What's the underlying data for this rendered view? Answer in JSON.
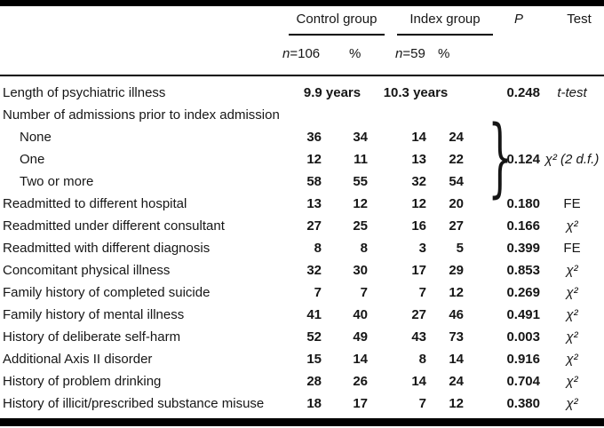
{
  "header": {
    "control_group": "Control group",
    "index_group": "Index group",
    "p_label": "P",
    "test_label": "Test",
    "control_n_italic": "n",
    "control_n_value": "=106",
    "control_pct_label": "%",
    "index_n_italic": "n",
    "index_n_value": "=59",
    "index_pct_label": "%"
  },
  "table": {
    "brace_glyph": "}",
    "rows": [
      {
        "label": "Length of psychiatric illness",
        "indent": false,
        "ctrl_span": "9.9 years",
        "idx_span": "10.3 years",
        "p": "0.248",
        "test": "t-test",
        "test_italic": true
      },
      {
        "label": "Number of admissions prior to index admission",
        "indent": false
      },
      {
        "label": "None",
        "indent": true,
        "ctrl_n": "36",
        "ctrl_pct": "34",
        "idx_n": "14",
        "idx_pct": "24"
      },
      {
        "label": "One",
        "indent": true,
        "ctrl_n": "12",
        "ctrl_pct": "11",
        "idx_n": "13",
        "idx_pct": "22",
        "p": "0.124",
        "test": "χ² (2 d.f.)",
        "test_italic": true
      },
      {
        "label": "Two or more",
        "indent": true,
        "ctrl_n": "58",
        "ctrl_pct": "55",
        "idx_n": "32",
        "idx_pct": "54"
      },
      {
        "label": "Readmitted to different hospital",
        "indent": false,
        "ctrl_n": "13",
        "ctrl_pct": "12",
        "idx_n": "12",
        "idx_pct": "20",
        "p": "0.180",
        "test": "FE",
        "test_italic": false
      },
      {
        "label": "Readmitted under different consultant",
        "indent": false,
        "ctrl_n": "27",
        "ctrl_pct": "25",
        "idx_n": "16",
        "idx_pct": "27",
        "p": "0.166",
        "test": "χ²",
        "test_italic": true
      },
      {
        "label": "Readmitted with different diagnosis",
        "indent": false,
        "ctrl_n": "8",
        "ctrl_pct": "8",
        "idx_n": "3",
        "idx_pct": "5",
        "p": "0.399",
        "test": "FE",
        "test_italic": false
      },
      {
        "label": "Concomitant physical illness",
        "indent": false,
        "ctrl_n": "32",
        "ctrl_pct": "30",
        "idx_n": "17",
        "idx_pct": "29",
        "p": "0.853",
        "test": "χ²",
        "test_italic": true
      },
      {
        "label": "Family history of completed suicide",
        "indent": false,
        "ctrl_n": "7",
        "ctrl_pct": "7",
        "idx_n": "7",
        "idx_pct": "12",
        "p": "0.269",
        "test": "χ²",
        "test_italic": true
      },
      {
        "label": "Family history of mental illness",
        "indent": false,
        "ctrl_n": "41",
        "ctrl_pct": "40",
        "idx_n": "27",
        "idx_pct": "46",
        "p": "0.491",
        "test": "χ²",
        "test_italic": true
      },
      {
        "label": "History of deliberate self-harm",
        "indent": false,
        "ctrl_n": "52",
        "ctrl_pct": "49",
        "idx_n": "43",
        "idx_pct": "73",
        "p": "0.003",
        "test": "χ²",
        "test_italic": true
      },
      {
        "label": "Additional Axis II disorder",
        "indent": false,
        "ctrl_n": "15",
        "ctrl_pct": "14",
        "idx_n": "8",
        "idx_pct": "14",
        "p": "0.916",
        "test": "χ²",
        "test_italic": true
      },
      {
        "label": "History of problem drinking",
        "indent": false,
        "ctrl_n": "28",
        "ctrl_pct": "26",
        "idx_n": "14",
        "idx_pct": "24",
        "p": "0.704",
        "test": "χ²",
        "test_italic": true
      },
      {
        "label": "History of illicit/prescribed substance misuse",
        "indent": false,
        "ctrl_n": "18",
        "ctrl_pct": "17",
        "idx_n": "7",
        "idx_pct": "12",
        "p": "0.380",
        "test": "χ²",
        "test_italic": true
      }
    ]
  },
  "colors": {
    "rule": "#000000",
    "text": "#161616",
    "background": "#ffffff"
  }
}
